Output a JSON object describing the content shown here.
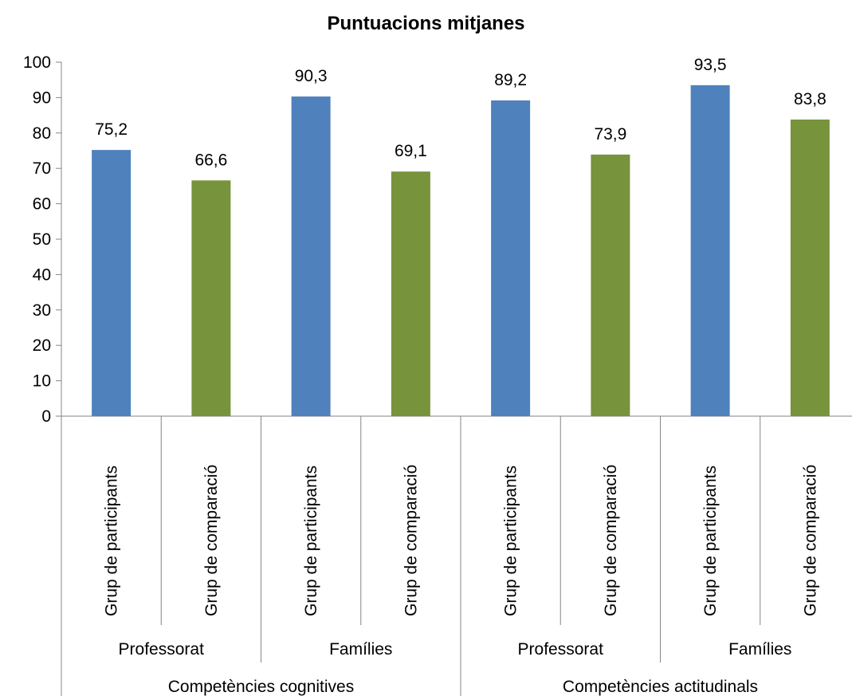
{
  "chart_data": {
    "type": "bar",
    "title": "Puntuacions mitjanes",
    "ylim": [
      0,
      100
    ],
    "yticks": [
      0,
      10,
      20,
      30,
      40,
      50,
      60,
      70,
      80,
      90,
      100
    ],
    "grid": false,
    "categories": [
      {
        "label": "Grup de participants",
        "group": "Professorat",
        "supergroup": "Competències cognitives",
        "value": 75.2,
        "value_label": "75,2",
        "color": "#4f81bd"
      },
      {
        "label": "Grup de comparació",
        "group": "Professorat",
        "supergroup": "Competències cognitives",
        "value": 66.6,
        "value_label": "66,6",
        "color": "#77933c"
      },
      {
        "label": "Grup de participants",
        "group": "Famílies",
        "supergroup": "Competències cognitives",
        "value": 90.3,
        "value_label": "90,3",
        "color": "#4f81bd"
      },
      {
        "label": "Grup de comparació",
        "group": "Famílies",
        "supergroup": "Competències cognitives",
        "value": 69.1,
        "value_label": "69,1",
        "color": "#77933c"
      },
      {
        "label": "Grup de participants",
        "group": "Professorat",
        "supergroup": "Competències actitudinals",
        "value": 89.2,
        "value_label": "89,2",
        "color": "#4f81bd"
      },
      {
        "label": "Grup de comparació",
        "group": "Professorat",
        "supergroup": "Competències actitudinals",
        "value": 73.9,
        "value_label": "73,9",
        "color": "#77933c"
      },
      {
        "label": "Grup de participants",
        "group": "Famílies",
        "supergroup": "Competències actitudinals",
        "value": 93.5,
        "value_label": "93,5",
        "color": "#4f81bd"
      },
      {
        "label": "Grup de comparació",
        "group": "Famílies",
        "supergroup": "Competències actitudinals",
        "value": 83.8,
        "value_label": "83,8",
        "color": "#77933c"
      }
    ],
    "groups": [
      "Professorat",
      "Famílies",
      "Professorat",
      "Famílies"
    ],
    "supergroups": [
      "Competències cognitives",
      "Competències actitudinals"
    ]
  }
}
